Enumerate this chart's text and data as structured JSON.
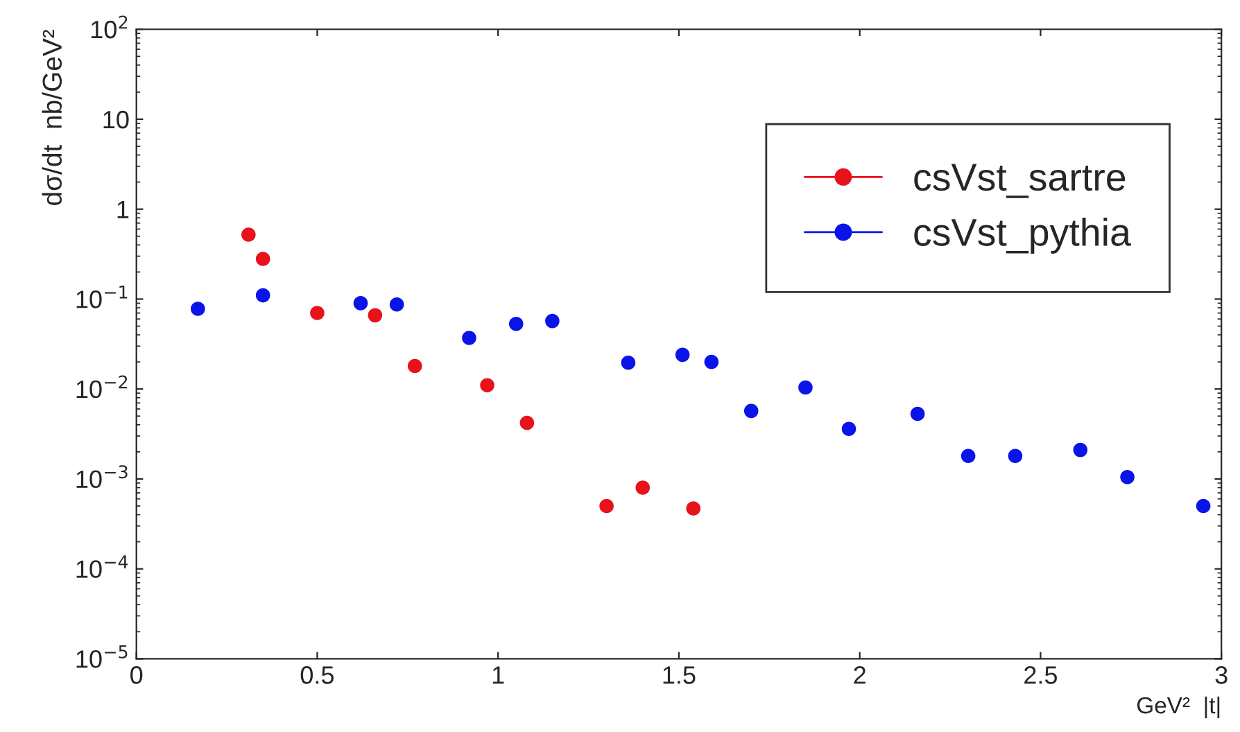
{
  "chart_data": {
    "type": "scatter",
    "xlabel": "GeV²  |t|",
    "ylabel": "dσ/dt  nb/GeV²",
    "log": "y",
    "grid": false,
    "legend": "top right",
    "marker": "circle",
    "xlim": [
      0,
      3
    ],
    "xticks": [
      0,
      0.5,
      1,
      1.5,
      2,
      2.5,
      3
    ],
    "ylim": [
      1e-05,
      100
    ],
    "yticks": [
      {
        "value": 1e-05,
        "label": "10$^{−5}$"
      },
      {
        "value": 0.0001,
        "label": "10$^{−4}$"
      },
      {
        "value": 0.001,
        "label": "10$^{−3}$"
      },
      {
        "value": 0.01,
        "label": "10$^{−2}$"
      },
      {
        "value": 0.1,
        "label": "10$^{−1}$"
      },
      1,
      10,
      {
        "value": 100,
        "label": "10$^{2}$"
      }
    ],
    "series": [
      {
        "name": "csVst_sartre",
        "color": "#e8121b",
        "x": [
          0.31,
          0.35,
          0.5,
          0.66,
          0.77,
          0.97,
          1.08,
          1.3,
          1.4,
          1.54
        ],
        "values": [
          0.52,
          0.28,
          0.07,
          0.066,
          0.018,
          0.011,
          0.0042,
          0.0005,
          0.0008,
          0.00047
        ]
      },
      {
        "name": "csVst_pythia",
        "color": "#0a14e8",
        "x": [
          0.17,
          0.35,
          0.62,
          0.72,
          0.92,
          1.05,
          1.15,
          1.36,
          1.51,
          1.59,
          1.7,
          1.85,
          1.97,
          2.16,
          2.3,
          2.43,
          2.61,
          2.74,
          2.95
        ],
        "values": [
          0.078,
          0.11,
          0.09,
          0.087,
          0.037,
          0.053,
          0.057,
          0.0196,
          0.024,
          0.02,
          0.0057,
          0.0104,
          0.0036,
          0.0053,
          0.0018,
          0.0018,
          0.0021,
          0.00105,
          0.0005
        ]
      }
    ]
  }
}
